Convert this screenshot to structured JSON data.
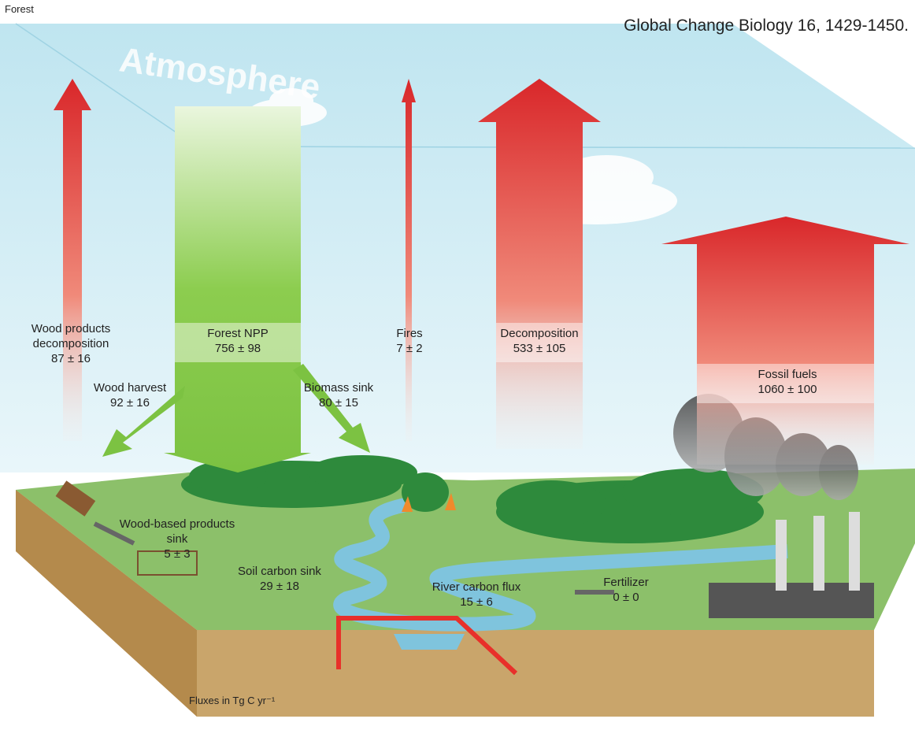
{
  "header": {
    "title": "Forest",
    "citation": "Global Change Biology 16, 1429-1450."
  },
  "atmosphere_label": "Atmosphere",
  "fluxes": [
    {
      "label": "Wood products decomposition",
      "value": "87 ± 16"
    },
    {
      "label": "Forest NPP",
      "value": "756 ± 98"
    },
    {
      "label": "Fires",
      "value": "7 ± 2"
    },
    {
      "label": "Decomposition",
      "value": "533 ± 105"
    },
    {
      "label": "Wood harvest",
      "value": "92 ± 16"
    },
    {
      "label": "Biomass sink",
      "value": "80 ± 15"
    },
    {
      "label": "Fossil fuels",
      "value": "1060 ± 100"
    },
    {
      "label": "Wood-based products sink",
      "value": "5 ± 3"
    },
    {
      "label": "Soil carbon sink",
      "value": "29 ± 18"
    },
    {
      "label": "River carbon flux",
      "value": "15 ± 6"
    },
    {
      "label": "Fertilizer",
      "value": "0 ± 0"
    }
  ],
  "footnote": "Fluxes in Tg C yr⁻¹"
}
